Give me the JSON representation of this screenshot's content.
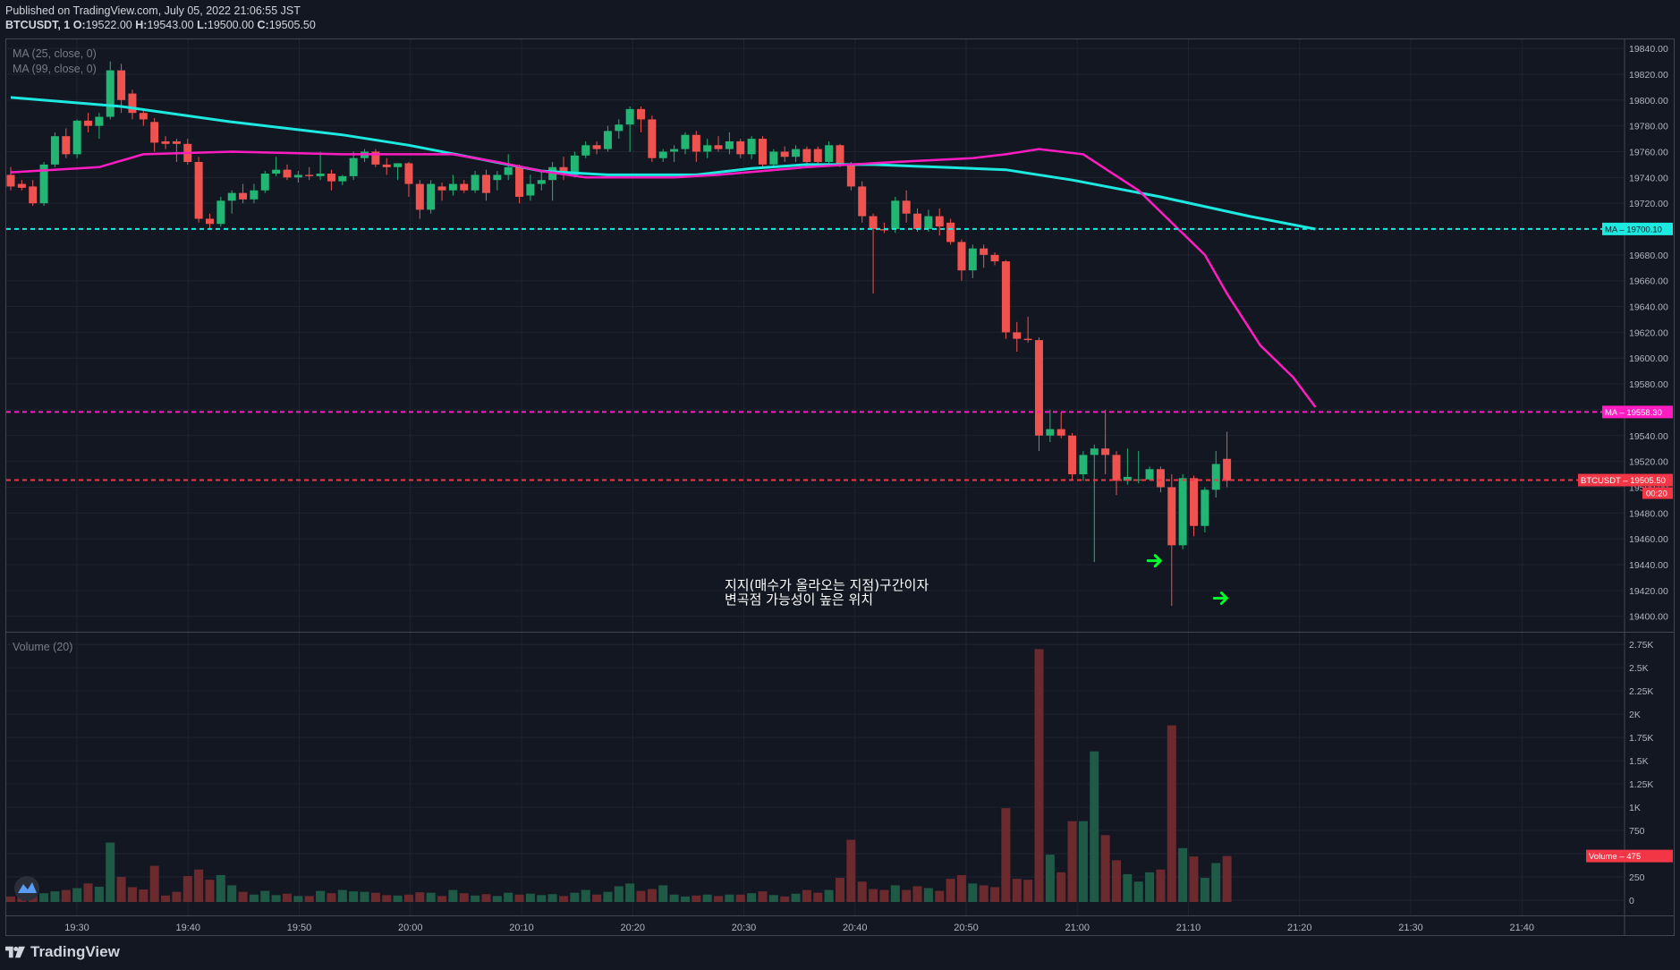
{
  "header": {
    "published": "Published on TradingView.com, July 05, 2022 21:06:55 JST",
    "symbol": "BTCUSDT, 1",
    "open_label": "O:",
    "open": "19522.00",
    "high_label": "H:",
    "high": "19543.00",
    "low_label": "L:",
    "low": "19500.00",
    "close_label": "C:",
    "close": "19505.50"
  },
  "legends": {
    "ma25": "MA (25, close, 0)",
    "ma99": "MA (99, close, 0)",
    "volume": "Volume (20)"
  },
  "badges": {
    "ma99_label": "MA",
    "ma99_value": "19700.10",
    "ma25_label": "MA",
    "ma25_value": "19558.30",
    "price_label": "BTCUSDT",
    "price_value": "19505.50",
    "countdown": "00:20",
    "volume_label": "Volume",
    "volume_value": "475"
  },
  "annotation": {
    "line1": "지지(매수가 올라오는 지점)구간이자",
    "line2": "변곡점 가능성이 높은 위치"
  },
  "footer": {
    "brand": "TradingView"
  },
  "colors": {
    "background": "#131722",
    "up": "#26a69a",
    "up_candle": "#22b573",
    "down": "#ef5350",
    "ma25": "#ff1dc2",
    "ma99": "#1de9e0",
    "price_line": "#f23645",
    "arrow": "#00ff2a"
  },
  "chart_data": {
    "type": "candlestick",
    "symbol": "BTCUSDT",
    "interval": "1",
    "price_axis": {
      "ticks": [
        "19840.00",
        "19820.00",
        "19800.00",
        "19780.00",
        "19760.00",
        "19740.00",
        "19720.00",
        "19700.00",
        "19680.00",
        "19660.00",
        "19640.00",
        "19620.00",
        "19600.00",
        "19580.00",
        "19560.00",
        "19540.00",
        "19520.00",
        "19500.00",
        "19480.00",
        "19460.00",
        "19440.00",
        "19420.00",
        "19400.00"
      ],
      "range": [
        19388,
        19847
      ]
    },
    "volume_axis": {
      "ticks": [
        "2.75K",
        "2.5K",
        "2.25K",
        "2K",
        "1.75K",
        "1.5K",
        "1.25K",
        "1K",
        "750",
        "500",
        "250",
        "0"
      ],
      "range": [
        0,
        2800
      ]
    },
    "time_axis": {
      "ticks": [
        "19:30",
        "19:40",
        "19:50",
        "20:00",
        "20:10",
        "20:20",
        "20:30",
        "20:40",
        "20:50",
        "21:00",
        "21:10",
        "21:20",
        "21:30",
        "21:40"
      ]
    },
    "candles": [
      {
        "o": 19742,
        "h": 19748,
        "l": 19730,
        "c": 19733,
        "v": 40
      },
      {
        "o": 19735,
        "h": 19738,
        "l": 19730,
        "c": 19732,
        "v": 50
      },
      {
        "o": 19733,
        "h": 19738,
        "l": 19718,
        "c": 19720,
        "v": 60
      },
      {
        "o": 19720,
        "h": 19752,
        "l": 19718,
        "c": 19750,
        "v": 75
      },
      {
        "o": 19750,
        "h": 19775,
        "l": 19748,
        "c": 19772,
        "v": 95
      },
      {
        "o": 19772,
        "h": 19778,
        "l": 19755,
        "c": 19758,
        "v": 110
      },
      {
        "o": 19758,
        "h": 19785,
        "l": 19755,
        "c": 19784,
        "v": 130
      },
      {
        "o": 19784,
        "h": 19790,
        "l": 19775,
        "c": 19780,
        "v": 180
      },
      {
        "o": 19780,
        "h": 19790,
        "l": 19770,
        "c": 19787,
        "v": 145
      },
      {
        "o": 19787,
        "h": 19830,
        "l": 19785,
        "c": 19823,
        "v": 620
      },
      {
        "o": 19823,
        "h": 19828,
        "l": 19790,
        "c": 19800,
        "v": 250
      },
      {
        "o": 19805,
        "h": 19808,
        "l": 19785,
        "c": 19790,
        "v": 140
      },
      {
        "o": 19790,
        "h": 19792,
        "l": 19780,
        "c": 19785,
        "v": 115
      },
      {
        "o": 19783,
        "h": 19786,
        "l": 19760,
        "c": 19767,
        "v": 370
      },
      {
        "o": 19768,
        "h": 19772,
        "l": 19762,
        "c": 19766,
        "v": 50
      },
      {
        "o": 19768,
        "h": 19770,
        "l": 19752,
        "c": 19766,
        "v": 90
      },
      {
        "o": 19766,
        "h": 19770,
        "l": 19750,
        "c": 19752,
        "v": 260
      },
      {
        "o": 19752,
        "h": 19756,
        "l": 19705,
        "c": 19708,
        "v": 330
      },
      {
        "o": 19708,
        "h": 19712,
        "l": 19700,
        "c": 19704,
        "v": 220
      },
      {
        "o": 19704,
        "h": 19725,
        "l": 19702,
        "c": 19722,
        "v": 270
      },
      {
        "o": 19722,
        "h": 19730,
        "l": 19712,
        "c": 19728,
        "v": 160
      },
      {
        "o": 19728,
        "h": 19735,
        "l": 19720,
        "c": 19723,
        "v": 90
      },
      {
        "o": 19723,
        "h": 19735,
        "l": 19720,
        "c": 19730,
        "v": 60
      },
      {
        "o": 19730,
        "h": 19745,
        "l": 19728,
        "c": 19743,
        "v": 100
      },
      {
        "o": 19743,
        "h": 19756,
        "l": 19741,
        "c": 19746,
        "v": 55
      },
      {
        "o": 19746,
        "h": 19750,
        "l": 19738,
        "c": 19740,
        "v": 70
      },
      {
        "o": 19740,
        "h": 19745,
        "l": 19736,
        "c": 19742,
        "v": 45
      },
      {
        "o": 19742,
        "h": 19748,
        "l": 19738,
        "c": 19741,
        "v": 45
      },
      {
        "o": 19741,
        "h": 19760,
        "l": 19738,
        "c": 19743,
        "v": 100
      },
      {
        "o": 19743,
        "h": 19746,
        "l": 19730,
        "c": 19737,
        "v": 75
      },
      {
        "o": 19737,
        "h": 19742,
        "l": 19734,
        "c": 19741,
        "v": 110
      },
      {
        "o": 19741,
        "h": 19760,
        "l": 19738,
        "c": 19755,
        "v": 95
      },
      {
        "o": 19755,
        "h": 19762,
        "l": 19752,
        "c": 19760,
        "v": 90
      },
      {
        "o": 19760,
        "h": 19762,
        "l": 19748,
        "c": 19750,
        "v": 80
      },
      {
        "o": 19750,
        "h": 19755,
        "l": 19742,
        "c": 19748,
        "v": 55
      },
      {
        "o": 19748,
        "h": 19750,
        "l": 19738,
        "c": 19751,
        "v": 50
      },
      {
        "o": 19751,
        "h": 19752,
        "l": 19725,
        "c": 19735,
        "v": 60
      },
      {
        "o": 19735,
        "h": 19738,
        "l": 19708,
        "c": 19715,
        "v": 85
      },
      {
        "o": 19715,
        "h": 19738,
        "l": 19712,
        "c": 19735,
        "v": 80
      },
      {
        "o": 19733,
        "h": 19736,
        "l": 19722,
        "c": 19730,
        "v": 45
      },
      {
        "o": 19730,
        "h": 19742,
        "l": 19726,
        "c": 19735,
        "v": 110
      },
      {
        "o": 19735,
        "h": 19738,
        "l": 19728,
        "c": 19730,
        "v": 75
      },
      {
        "o": 19730,
        "h": 19745,
        "l": 19728,
        "c": 19742,
        "v": 50
      },
      {
        "o": 19742,
        "h": 19746,
        "l": 19722,
        "c": 19728,
        "v": 65
      },
      {
        "o": 19738,
        "h": 19745,
        "l": 19730,
        "c": 19742,
        "v": 45
      },
      {
        "o": 19742,
        "h": 19758,
        "l": 19738,
        "c": 19748,
        "v": 80
      },
      {
        "o": 19748,
        "h": 19750,
        "l": 19720,
        "c": 19725,
        "v": 60
      },
      {
        "o": 19726,
        "h": 19742,
        "l": 19722,
        "c": 19735,
        "v": 70
      },
      {
        "o": 19735,
        "h": 19745,
        "l": 19730,
        "c": 19738,
        "v": 55
      },
      {
        "o": 19738,
        "h": 19752,
        "l": 19722,
        "c": 19748,
        "v": 65
      },
      {
        "o": 19748,
        "h": 19756,
        "l": 19738,
        "c": 19742,
        "v": 45
      },
      {
        "o": 19742,
        "h": 19760,
        "l": 19740,
        "c": 19757,
        "v": 80
      },
      {
        "o": 19757,
        "h": 19768,
        "l": 19755,
        "c": 19765,
        "v": 110
      },
      {
        "o": 19765,
        "h": 19768,
        "l": 19758,
        "c": 19762,
        "v": 60
      },
      {
        "o": 19762,
        "h": 19780,
        "l": 19760,
        "c": 19776,
        "v": 90
      },
      {
        "o": 19776,
        "h": 19785,
        "l": 19770,
        "c": 19781,
        "v": 150
      },
      {
        "o": 19781,
        "h": 19795,
        "l": 19760,
        "c": 19793,
        "v": 180
      },
      {
        "o": 19793,
        "h": 19795,
        "l": 19775,
        "c": 19785,
        "v": 100
      },
      {
        "o": 19785,
        "h": 19788,
        "l": 19752,
        "c": 19755,
        "v": 120
      },
      {
        "o": 19755,
        "h": 19762,
        "l": 19752,
        "c": 19760,
        "v": 160
      },
      {
        "o": 19760,
        "h": 19765,
        "l": 19752,
        "c": 19762,
        "v": 60
      },
      {
        "o": 19762,
        "h": 19775,
        "l": 19758,
        "c": 19773,
        "v": 40
      },
      {
        "o": 19773,
        "h": 19776,
        "l": 19752,
        "c": 19760,
        "v": 50
      },
      {
        "o": 19760,
        "h": 19770,
        "l": 19755,
        "c": 19765,
        "v": 60
      },
      {
        "o": 19765,
        "h": 19772,
        "l": 19760,
        "c": 19762,
        "v": 45
      },
      {
        "o": 19762,
        "h": 19775,
        "l": 19758,
        "c": 19768,
        "v": 60
      },
      {
        "o": 19768,
        "h": 19770,
        "l": 19755,
        "c": 19758,
        "v": 60
      },
      {
        "o": 19758,
        "h": 19772,
        "l": 19754,
        "c": 19770,
        "v": 75
      },
      {
        "o": 19770,
        "h": 19772,
        "l": 19748,
        "c": 19750,
        "v": 95
      },
      {
        "o": 19750,
        "h": 19762,
        "l": 19748,
        "c": 19760,
        "v": 55
      },
      {
        "o": 19760,
        "h": 19764,
        "l": 19752,
        "c": 19756,
        "v": 40
      },
      {
        "o": 19756,
        "h": 19765,
        "l": 19752,
        "c": 19762,
        "v": 70
      },
      {
        "o": 19762,
        "h": 19764,
        "l": 19748,
        "c": 19752,
        "v": 110
      },
      {
        "o": 19762,
        "h": 19764,
        "l": 19750,
        "c": 19752,
        "v": 80
      },
      {
        "o": 19752,
        "h": 19768,
        "l": 19750,
        "c": 19765,
        "v": 110
      },
      {
        "o": 19765,
        "h": 19766,
        "l": 19748,
        "c": 19750,
        "v": 240
      },
      {
        "o": 19750,
        "h": 19752,
        "l": 19730,
        "c": 19733,
        "v": 650
      },
      {
        "o": 19733,
        "h": 19737,
        "l": 19705,
        "c": 19710,
        "v": 200
      },
      {
        "o": 19710,
        "h": 19712,
        "l": 19650,
        "c": 19700,
        "v": 120
      },
      {
        "o": 19700,
        "h": 19705,
        "l": 19697,
        "c": 19699,
        "v": 110
      },
      {
        "o": 19700,
        "h": 19725,
        "l": 19697,
        "c": 19722,
        "v": 160
      },
      {
        "o": 19722,
        "h": 19730,
        "l": 19705,
        "c": 19712,
        "v": 110
      },
      {
        "o": 19712,
        "h": 19716,
        "l": 19698,
        "c": 19700,
        "v": 150
      },
      {
        "o": 19700,
        "h": 19715,
        "l": 19698,
        "c": 19710,
        "v": 130
      },
      {
        "o": 19710,
        "h": 19716,
        "l": 19695,
        "c": 19702,
        "v": 100
      },
      {
        "o": 19705,
        "h": 19708,
        "l": 19688,
        "c": 19690,
        "v": 230
      },
      {
        "o": 19690,
        "h": 19692,
        "l": 19660,
        "c": 19668,
        "v": 270
      },
      {
        "o": 19668,
        "h": 19688,
        "l": 19662,
        "c": 19685,
        "v": 180
      },
      {
        "o": 19685,
        "h": 19688,
        "l": 19670,
        "c": 19680,
        "v": 160
      },
      {
        "o": 19680,
        "h": 19682,
        "l": 19672,
        "c": 19675,
        "v": 140
      },
      {
        "o": 19675,
        "h": 19676,
        "l": 19615,
        "c": 19620,
        "v": 990
      },
      {
        "o": 19620,
        "h": 19628,
        "l": 19605,
        "c": 19615,
        "v": 230
      },
      {
        "o": 19615,
        "h": 19632,
        "l": 19612,
        "c": 19614,
        "v": 220
      },
      {
        "o": 19614,
        "h": 19616,
        "l": 19528,
        "c": 19540,
        "v": 2700
      },
      {
        "o": 19540,
        "h": 19560,
        "l": 19535,
        "c": 19545,
        "v": 490
      },
      {
        "o": 19545,
        "h": 19558,
        "l": 19538,
        "c": 19540,
        "v": 300
      },
      {
        "o": 19540,
        "h": 19542,
        "l": 19505,
        "c": 19510,
        "v": 850
      },
      {
        "o": 19510,
        "h": 19528,
        "l": 19505,
        "c": 19525,
        "v": 850
      },
      {
        "o": 19525,
        "h": 19533,
        "l": 19442,
        "c": 19530,
        "v": 1600
      },
      {
        "o": 19530,
        "h": 19560,
        "l": 19510,
        "c": 19525,
        "v": 700
      },
      {
        "o": 19525,
        "h": 19528,
        "l": 19494,
        "c": 19505,
        "v": 430
      },
      {
        "o": 19505,
        "h": 19530,
        "l": 19502,
        "c": 19508,
        "v": 280
      },
      {
        "o": 19506,
        "h": 19528,
        "l": 19503,
        "c": 19506,
        "v": 200
      },
      {
        "o": 19506,
        "h": 19516,
        "l": 19505,
        "c": 19514,
        "v": 300
      },
      {
        "o": 19514,
        "h": 19516,
        "l": 19496,
        "c": 19500,
        "v": 330
      },
      {
        "o": 19500,
        "h": 19510,
        "l": 19408,
        "c": 19455,
        "v": 1880
      },
      {
        "o": 19455,
        "h": 19510,
        "l": 19452,
        "c": 19507,
        "v": 560
      },
      {
        "o": 19507,
        "h": 19509,
        "l": 19462,
        "c": 19470,
        "v": 470
      },
      {
        "o": 19470,
        "h": 19500,
        "l": 19465,
        "c": 19498,
        "v": 240
      },
      {
        "o": 19498,
        "h": 19528,
        "l": 19492,
        "c": 19518,
        "v": 400
      },
      {
        "o": 19522,
        "h": 19543,
        "l": 19500,
        "c": 19505,
        "v": 475
      }
    ],
    "ma25_path": [
      [
        0,
        19744
      ],
      [
        8,
        19748
      ],
      [
        12,
        19758
      ],
      [
        20,
        19760
      ],
      [
        30,
        19758
      ],
      [
        40,
        19758
      ],
      [
        44,
        19752
      ],
      [
        48,
        19745
      ],
      [
        52,
        19740
      ],
      [
        60,
        19740
      ],
      [
        64,
        19742
      ],
      [
        72,
        19748
      ],
      [
        80,
        19752
      ],
      [
        87,
        19755
      ],
      [
        90,
        19758
      ],
      [
        93,
        19762
      ],
      [
        97,
        19758
      ],
      [
        102,
        19730
      ],
      [
        108,
        19680
      ],
      [
        110,
        19650
      ],
      [
        113,
        19610
      ],
      [
        116,
        19585
      ],
      [
        118,
        19562
      ]
    ],
    "ma99_path": [
      [
        0,
        19802
      ],
      [
        10,
        19795
      ],
      [
        20,
        19783
      ],
      [
        30,
        19773
      ],
      [
        36,
        19765
      ],
      [
        42,
        19755
      ],
      [
        48,
        19745
      ],
      [
        54,
        19742
      ],
      [
        62,
        19742
      ],
      [
        67,
        19747
      ],
      [
        72,
        19750
      ],
      [
        78,
        19750
      ],
      [
        84,
        19748
      ],
      [
        90,
        19746
      ],
      [
        96,
        19738
      ],
      [
        104,
        19725
      ],
      [
        112,
        19710
      ],
      [
        118,
        19700
      ]
    ],
    "arrows": [
      {
        "bar": 103.5,
        "price": 19443
      },
      {
        "bar": 109.5,
        "price": 19414
      }
    ]
  }
}
